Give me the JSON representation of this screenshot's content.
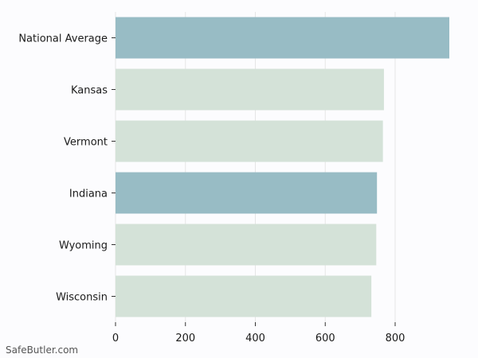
{
  "chart_data": {
    "type": "bar",
    "orientation": "horizontal",
    "categories": [
      "National Average",
      "Kansas",
      "Vermont",
      "Indiana",
      "Wyoming",
      "Wisconsin"
    ],
    "values": [
      955,
      768,
      765,
      748,
      746,
      732
    ],
    "highlighted": [
      true,
      false,
      false,
      true,
      false,
      false
    ],
    "xlim": [
      0,
      955
    ],
    "xticks": [
      0,
      200,
      400,
      600,
      800
    ],
    "grid": true,
    "title": "",
    "xlabel": "",
    "ylabel": ""
  },
  "colors": {
    "highlight": "#98bcc5",
    "default": "#d4e2d8",
    "grid": "#e6e6e6",
    "background": "#fcfcfe",
    "text": "#1a1a1a"
  },
  "watermark": "SafeButler.com"
}
